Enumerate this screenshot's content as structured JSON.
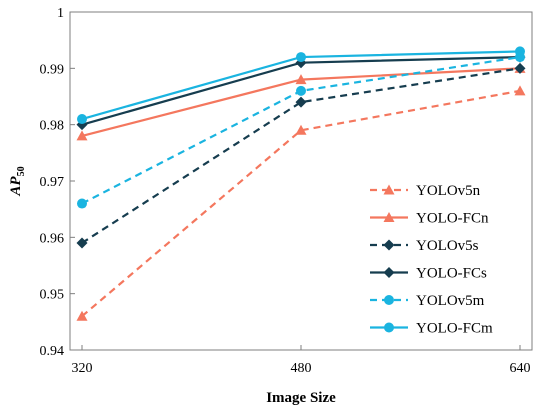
{
  "chart_data": {
    "type": "line",
    "xlabel": "Image Size",
    "ylabel_main": "AP",
    "ylabel_sub": "50",
    "categories": [
      "320",
      "480",
      "640"
    ],
    "ylim": [
      0.94,
      1
    ],
    "yticks": [
      "0.94",
      "0.95",
      "0.96",
      "0.97",
      "0.98",
      "0.99",
      "1"
    ],
    "grid": false,
    "legend": "bottom-right",
    "series": [
      {
        "name": "YOLOv5n",
        "values": [
          0.946,
          0.979,
          0.986
        ],
        "color": "#f4775e",
        "dash": true,
        "marker": "triangle"
      },
      {
        "name": "YOLO-FCn",
        "values": [
          0.978,
          0.988,
          0.99
        ],
        "color": "#f4775e",
        "dash": false,
        "marker": "triangle"
      },
      {
        "name": "YOLOv5s",
        "values": [
          0.959,
          0.984,
          0.99
        ],
        "color": "#163d4f",
        "dash": true,
        "marker": "diamond"
      },
      {
        "name": "YOLO-FCs",
        "values": [
          0.98,
          0.991,
          0.992
        ],
        "color": "#163d4f",
        "dash": false,
        "marker": "diamond"
      },
      {
        "name": "YOLOv5m",
        "values": [
          0.966,
          0.986,
          0.992
        ],
        "color": "#1ab4e0",
        "dash": true,
        "marker": "circle"
      },
      {
        "name": "YOLO-FCm",
        "values": [
          0.981,
          0.992,
          0.993
        ],
        "color": "#1ab4e0",
        "dash": false,
        "marker": "circle"
      }
    ]
  }
}
